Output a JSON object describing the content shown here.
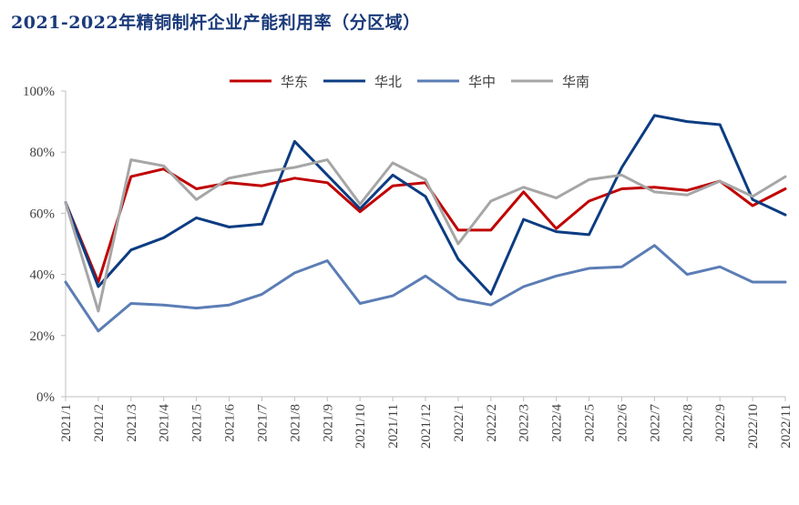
{
  "title": "2021-2022年精铜制杆企业产能利用率（分区域）",
  "chart_data": {
    "type": "line",
    "title": "2021-2022年精铜制杆企业产能利用率（分区域）",
    "xlabel": "",
    "ylabel": "",
    "ylim": [
      0,
      100
    ],
    "y_ticks": [
      "0%",
      "20%",
      "40%",
      "60%",
      "80%",
      "100%"
    ],
    "y_tick_values": [
      0,
      20,
      40,
      60,
      80,
      100
    ],
    "legend_position": "top",
    "grid": false,
    "categories": [
      "2021/1",
      "2021/2",
      "2021/3",
      "2021/4",
      "2021/5",
      "2021/6",
      "2021/7",
      "2021/8",
      "2021/9",
      "2021/10",
      "2021/11",
      "2021/12",
      "2022/1",
      "2022/2",
      "2022/3",
      "2022/4",
      "2022/5",
      "2022/6",
      "2022/7",
      "2022/8",
      "2022/9",
      "2022/10",
      "2022/11"
    ],
    "series": [
      {
        "name": "华东",
        "color": "#c00000",
        "values": [
          63.5,
          37.5,
          72,
          74.5,
          68,
          70,
          69,
          71.5,
          70,
          60.5,
          69,
          70,
          54.5,
          54.5,
          67,
          55,
          64,
          68,
          68.5,
          67.5,
          70.5,
          62.5,
          68
        ]
      },
      {
        "name": "华北",
        "color": "#0c3c82",
        "values": [
          63.5,
          36,
          48,
          52,
          58.5,
          55.5,
          56.5,
          83.5,
          72.5,
          61.5,
          72.5,
          65.5,
          45,
          33.5,
          58,
          54,
          53,
          75,
          92,
          90,
          89,
          64.5,
          59.5
        ]
      },
      {
        "name": "华中",
        "color": "#5b7db5",
        "values": [
          37.5,
          21.5,
          30.5,
          30,
          29,
          30,
          33.5,
          40.5,
          44.5,
          30.5,
          33,
          39.5,
          32,
          30,
          36,
          39.5,
          42,
          42.5,
          49.5,
          40,
          42.5,
          37.5,
          37.5
        ]
      },
      {
        "name": "华南",
        "color": "#a6a6a6",
        "values": [
          63.5,
          28,
          77.5,
          75.5,
          64.5,
          71.5,
          73.5,
          75,
          77.5,
          63,
          76.5,
          71,
          50,
          64,
          68.5,
          65,
          71,
          72.5,
          67,
          66,
          70.5,
          65.5,
          72
        ]
      }
    ]
  }
}
